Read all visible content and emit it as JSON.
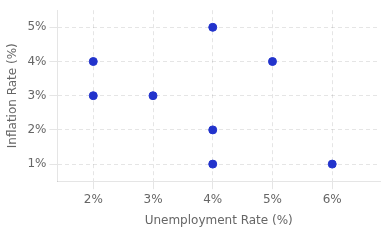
{
  "chart_data": {
    "type": "scatter",
    "x": [
      2,
      2,
      3,
      4,
      4,
      4,
      5,
      6
    ],
    "values": [
      4,
      3,
      3,
      5,
      2,
      1,
      4,
      1
    ],
    "color": "#2233cc",
    "xlabel": "Unemployment Rate (%)",
    "ylabel": "Inflation Rate (%)",
    "xlim": [
      1.4,
      6.8
    ],
    "ylim": [
      0.5,
      5.5
    ],
    "xticks": [
      {
        "value": 2,
        "label": "2%"
      },
      {
        "value": 3,
        "label": "3%"
      },
      {
        "value": 4,
        "label": "4%"
      },
      {
        "value": 5,
        "label": "5%"
      },
      {
        "value": 6,
        "label": "6%"
      }
    ],
    "yticks": [
      {
        "value": 1,
        "label": "1%"
      },
      {
        "value": 2,
        "label": "2%"
      },
      {
        "value": 3,
        "label": "3%"
      },
      {
        "value": 4,
        "label": "4%"
      },
      {
        "value": 5,
        "label": "5%"
      }
    ],
    "grid": true
  }
}
